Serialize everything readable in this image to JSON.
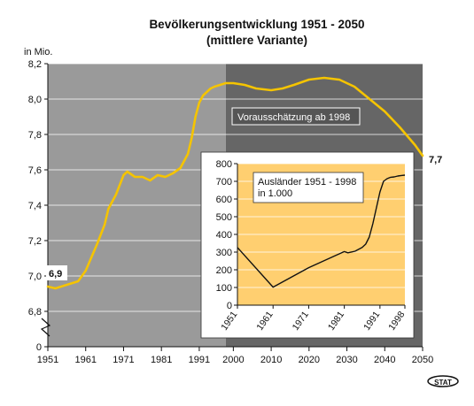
{
  "chart_data": [
    {
      "type": "line",
      "title": "Bevölkerungsentwicklung 1951 - 2050",
      "subtitle": "(mittlere Variante)",
      "ylabel": "in Mio.",
      "xlim": [
        1951,
        2050
      ],
      "ylim": [
        6.7,
        8.2
      ],
      "y_axis_break": true,
      "grid": true,
      "x_ticks": [
        "1951",
        "1961",
        "1971",
        "1981",
        "1991",
        "2000",
        "2010",
        "2020",
        "2030",
        "2040",
        "2050"
      ],
      "y_ticks": [
        "0",
        "6,8",
        "7,0",
        "7,2",
        "7,4",
        "7,6",
        "7,8",
        "8,0",
        "8,2"
      ],
      "annotation": "Vorausschätzung ab 1998",
      "label_start": "6,9",
      "label_end": "7,7",
      "colors": {
        "line": "#f5c400",
        "history_bg": "#9a9a9a",
        "forecast_bg": "#666666"
      },
      "series": [
        {
          "x": [
            1951,
            1953,
            1956,
            1959,
            1961,
            1964,
            1966,
            1967,
            1969,
            1971,
            1972,
            1974,
            1976,
            1978,
            1980,
            1982,
            1984,
            1986,
            1988,
            1989,
            1990,
            1991,
            1992,
            1993,
            1994,
            1995,
            1998,
            2000,
            2003,
            2006,
            2010,
            2013,
            2016,
            2020,
            2024,
            2028,
            2032,
            2036,
            2040,
            2044,
            2048,
            2050
          ],
          "y": [
            6.94,
            6.93,
            6.95,
            6.97,
            7.03,
            7.18,
            7.29,
            7.38,
            7.46,
            7.57,
            7.59,
            7.56,
            7.56,
            7.54,
            7.57,
            7.56,
            7.58,
            7.61,
            7.69,
            7.78,
            7.9,
            7.98,
            8.02,
            8.04,
            8.06,
            8.07,
            8.09,
            8.09,
            8.08,
            8.06,
            8.05,
            8.06,
            8.08,
            8.11,
            8.12,
            8.11,
            8.07,
            8.0,
            7.93,
            7.84,
            7.74,
            7.68
          ]
        }
      ]
    },
    {
      "type": "line",
      "title": "Ausländer 1951 - 1998\nin 1.000",
      "xlim": [
        1951,
        1998
      ],
      "ylim": [
        0,
        800
      ],
      "grid": true,
      "x_ticks": [
        "1951",
        "1961",
        "1971",
        "1981",
        "1991",
        "1998"
      ],
      "y_ticks": [
        "0",
        "100",
        "200",
        "300",
        "400",
        "500",
        "600",
        "700",
        "800"
      ],
      "colors": {
        "background": "#ffcf70",
        "line": "#111111"
      },
      "series": [
        {
          "x": [
            1951,
            1961,
            1971,
            1981,
            1982,
            1984,
            1986,
            1987,
            1988,
            1989,
            1990,
            1991,
            1992,
            1993,
            1994,
            1995,
            1996,
            1997,
            1998
          ],
          "y": [
            326,
            102,
            212,
            303,
            296,
            305,
            326,
            345,
            385,
            460,
            550,
            640,
            700,
            715,
            723,
            725,
            730,
            733,
            735
          ]
        }
      ]
    }
  ],
  "footer": {
    "logo_text": "STAT"
  }
}
